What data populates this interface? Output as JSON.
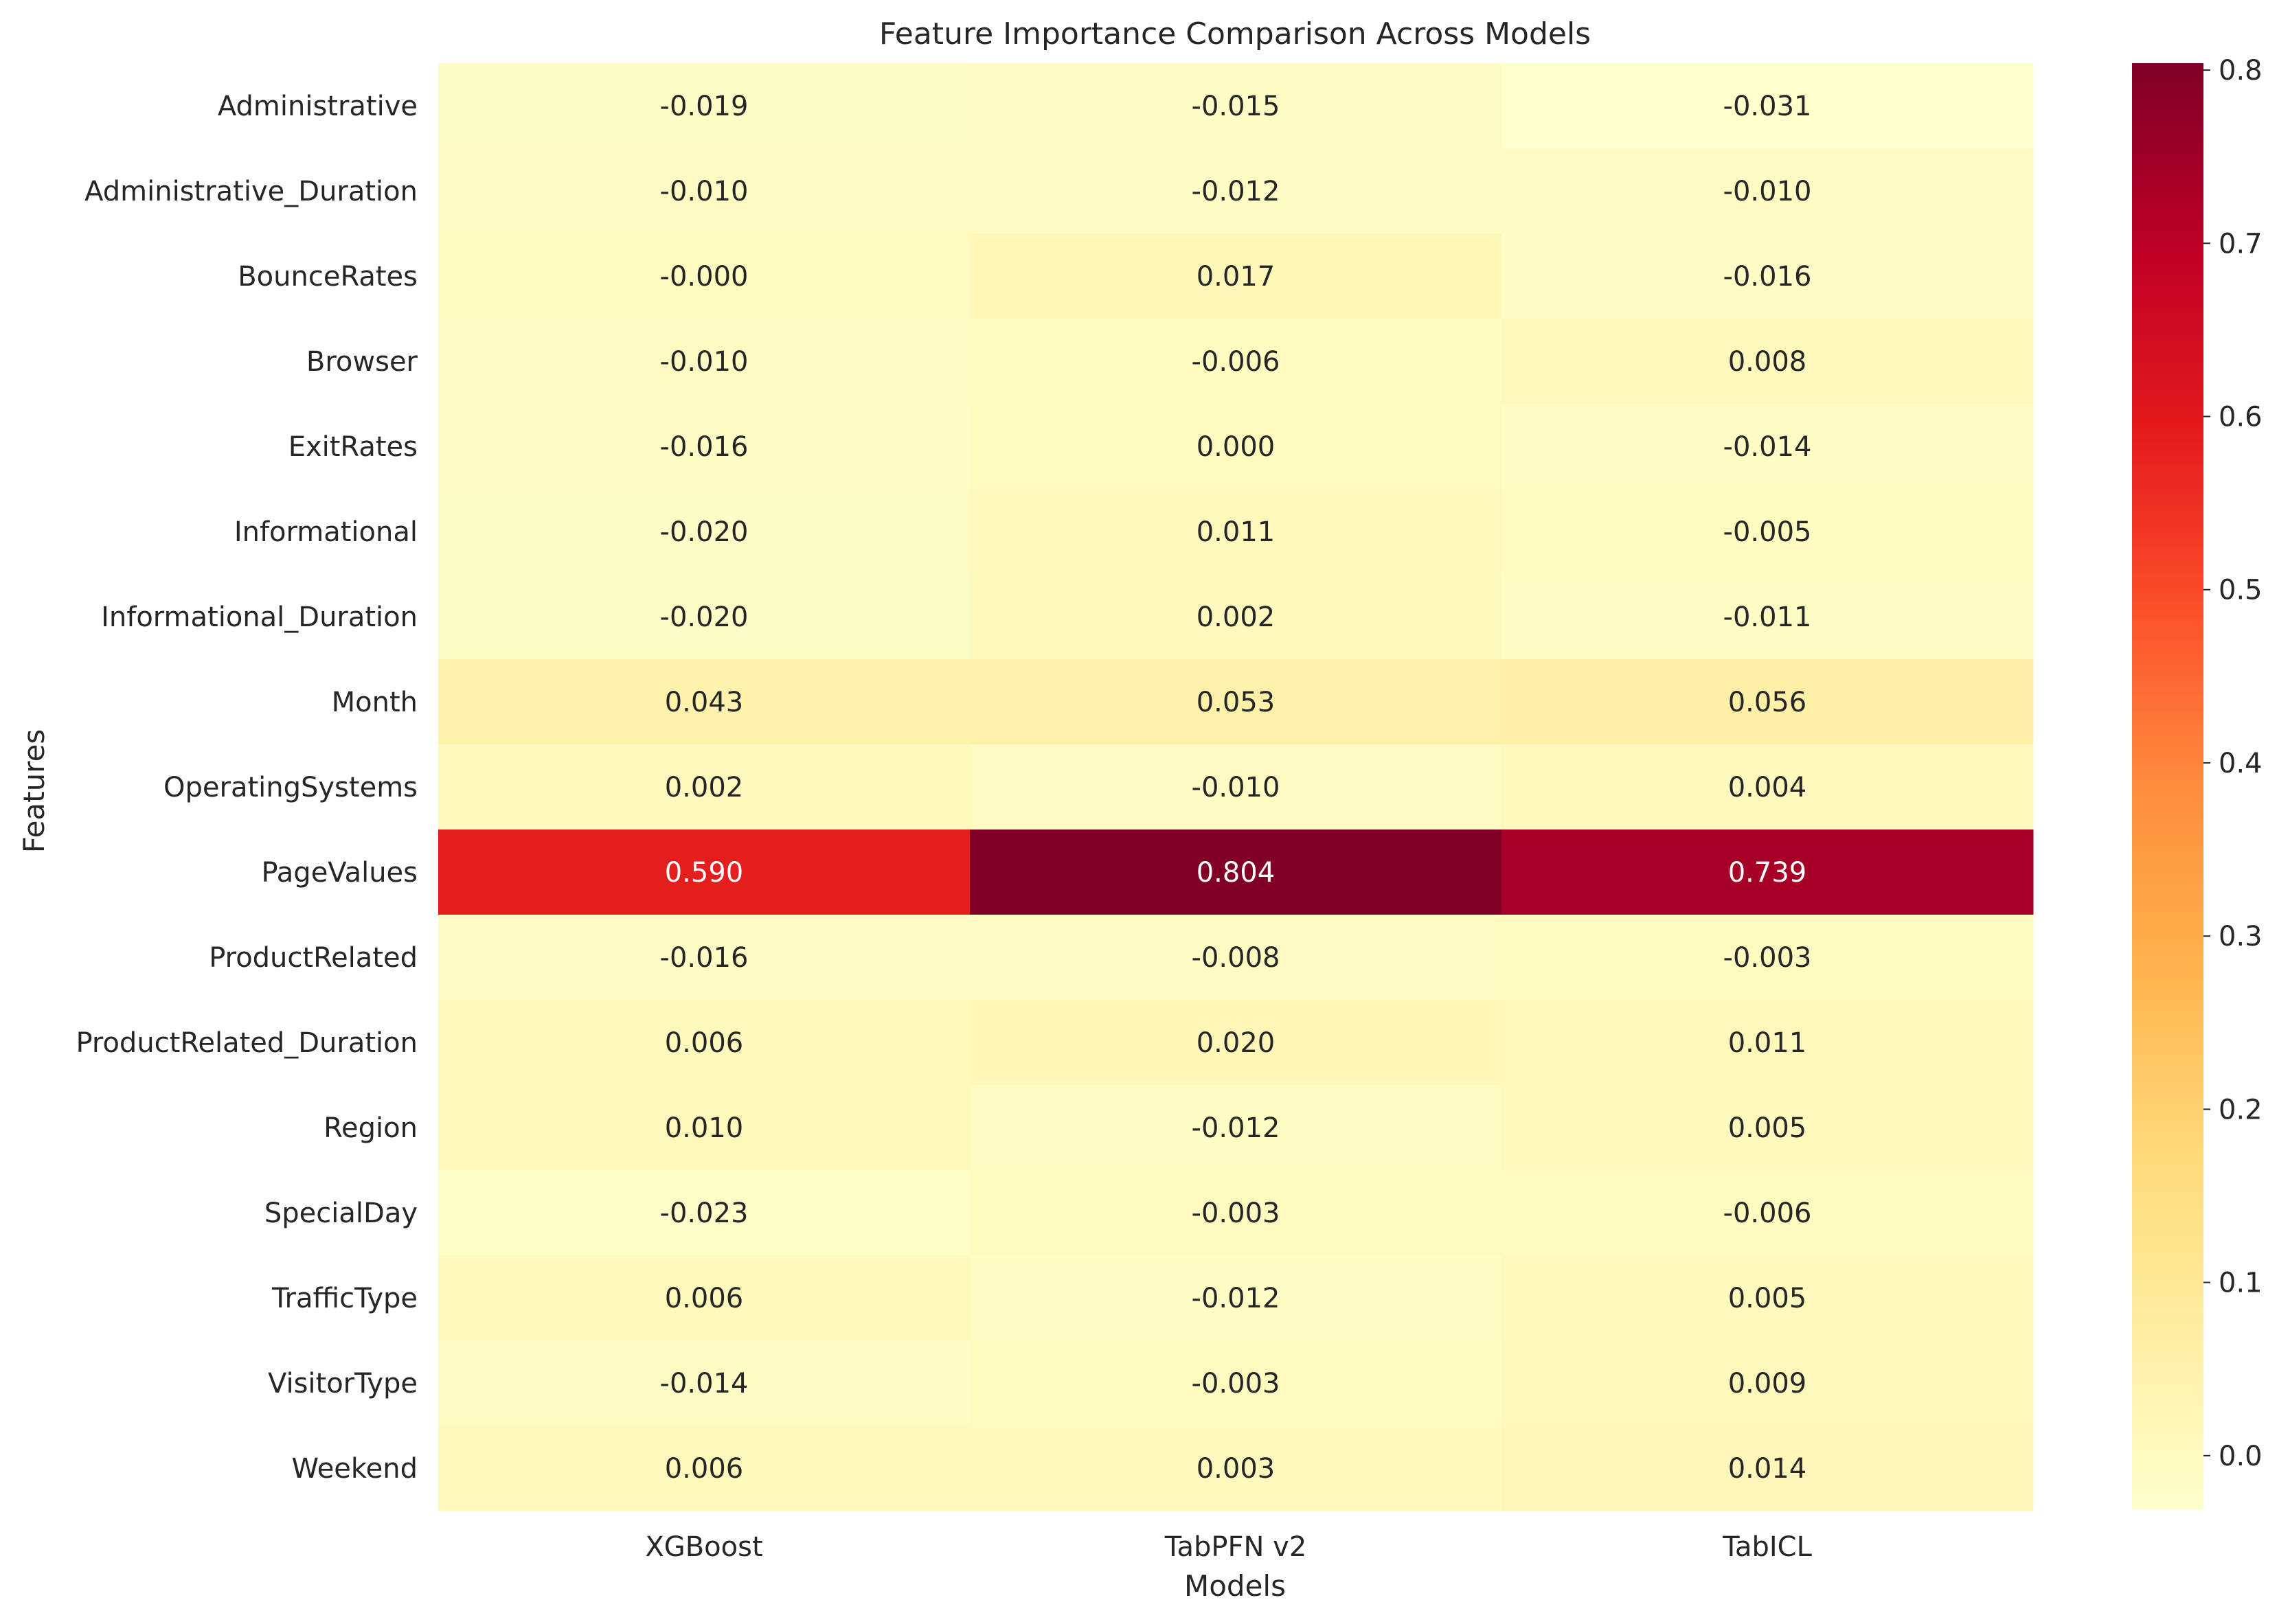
{
  "chart_data": {
    "type": "heatmap",
    "title": "Feature Importance Comparison Across Models",
    "xlabel": "Models",
    "ylabel": "Features",
    "columns": [
      "XGBoost",
      "TabPFN v2",
      "TabICL"
    ],
    "rows": [
      "Administrative",
      "Administrative_Duration",
      "BounceRates",
      "Browser",
      "ExitRates",
      "Informational",
      "Informational_Duration",
      "Month",
      "OperatingSystems",
      "PageValues",
      "ProductRelated",
      "ProductRelated_Duration",
      "Region",
      "SpecialDay",
      "TrafficType",
      "VisitorType",
      "Weekend"
    ],
    "values": [
      [
        -0.019,
        -0.015,
        -0.031
      ],
      [
        -0.01,
        -0.012,
        -0.01
      ],
      [
        -0.0,
        0.017,
        -0.016
      ],
      [
        -0.01,
        -0.006,
        0.008
      ],
      [
        -0.016,
        0.0,
        -0.014
      ],
      [
        -0.02,
        0.011,
        -0.005
      ],
      [
        -0.02,
        0.002,
        -0.011
      ],
      [
        0.043,
        0.053,
        0.056
      ],
      [
        0.002,
        -0.01,
        0.004
      ],
      [
        0.59,
        0.804,
        0.739
      ],
      [
        -0.016,
        -0.008,
        -0.003
      ],
      [
        0.006,
        0.02,
        0.011
      ],
      [
        0.01,
        -0.012,
        0.005
      ],
      [
        -0.023,
        -0.003,
        -0.006
      ],
      [
        0.006,
        -0.012,
        0.005
      ],
      [
        -0.014,
        -0.003,
        0.009
      ],
      [
        0.006,
        0.003,
        0.014
      ]
    ],
    "value_labels": [
      [
        "-0.019",
        "-0.015",
        "-0.031"
      ],
      [
        "-0.010",
        "-0.012",
        "-0.010"
      ],
      [
        "-0.000",
        "0.017",
        "-0.016"
      ],
      [
        "-0.010",
        "-0.006",
        "0.008"
      ],
      [
        "-0.016",
        "0.000",
        "-0.014"
      ],
      [
        "-0.020",
        "0.011",
        "-0.005"
      ],
      [
        "-0.020",
        "0.002",
        "-0.011"
      ],
      [
        "0.043",
        "0.053",
        "0.056"
      ],
      [
        "0.002",
        "-0.010",
        "0.004"
      ],
      [
        "0.590",
        "0.804",
        "0.739"
      ],
      [
        "-0.016",
        "-0.008",
        "-0.003"
      ],
      [
        "0.006",
        "0.020",
        "0.011"
      ],
      [
        "0.010",
        "-0.012",
        "0.005"
      ],
      [
        "-0.023",
        "-0.003",
        "-0.006"
      ],
      [
        "0.006",
        "-0.012",
        "0.005"
      ],
      [
        "-0.014",
        "-0.003",
        "0.009"
      ],
      [
        "0.006",
        "0.003",
        "0.014"
      ]
    ],
    "colormap": "YlOrRd",
    "colormap_stops": [
      "#ffffcc",
      "#ffeda0",
      "#fed976",
      "#feb24c",
      "#fd8d3c",
      "#fc4e2a",
      "#e31a1c",
      "#bd0026",
      "#800026"
    ],
    "color_range": [
      -0.031,
      0.804
    ],
    "colorbar_ticks": [
      "0.0",
      "0.1",
      "0.2",
      "0.3",
      "0.4",
      "0.5",
      "0.6",
      "0.7",
      "0.8"
    ],
    "colorbar_tick_values": [
      0.0,
      0.1,
      0.2,
      0.3,
      0.4,
      0.5,
      0.6,
      0.7,
      0.8
    ],
    "grid": false,
    "colorbar_position": "right"
  }
}
